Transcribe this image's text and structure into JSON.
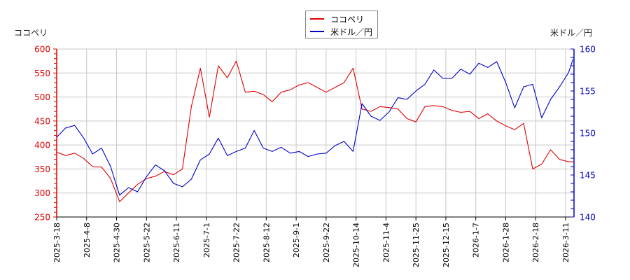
{
  "chart_data": {
    "type": "line",
    "title": "",
    "legend": {
      "position": "top-center",
      "entries": [
        {
          "label": "ココペリ",
          "color": "#e00000"
        },
        {
          "label": "米ドル／円",
          "color": "#0000cc"
        }
      ]
    },
    "grid": true,
    "left_axis": {
      "label": "ココペリ",
      "color": "#e00000",
      "ylim": [
        250,
        600
      ],
      "ticks": [
        250,
        300,
        350,
        400,
        450,
        500,
        550,
        600
      ]
    },
    "right_axis": {
      "label": "米ドル／円",
      "color": "#0000cc",
      "ylim": [
        140,
        160
      ],
      "ticks": [
        140,
        145,
        150,
        155,
        160
      ]
    },
    "x_tick_labels": [
      "2025-3-18",
      "2025-4-8",
      "2025-4-30",
      "2025-5-22",
      "2025-6-11",
      "2025-7-1",
      "2025-7-22",
      "2025-8-12",
      "2025-9-1",
      "2025-9-22",
      "2025-10-14",
      "2025-11-4",
      "2025-11-25",
      "2025-12-15",
      "2026-1-7",
      "2026-1-28",
      "2026-2-18",
      "2026-3-11"
    ],
    "series": [
      {
        "name": "ココペリ",
        "axis": "left",
        "color": "#e00000",
        "x": [
          0,
          0.3,
          0.6,
          0.9,
          1.2,
          1.5,
          1.8,
          2.1,
          2.4,
          2.7,
          3.0,
          3.3,
          3.6,
          3.9,
          4.2,
          4.5,
          4.8,
          5.1,
          5.4,
          5.7,
          6.0,
          6.3,
          6.6,
          6.9,
          7.2,
          7.5,
          7.8,
          8.1,
          8.4,
          8.7,
          9.0,
          9.3,
          9.6,
          9.9,
          10.2,
          10.5,
          10.8,
          11.1,
          11.4,
          11.7,
          12.0,
          12.3,
          12.6,
          12.9,
          13.2,
          13.5,
          13.8,
          14.1,
          14.4,
          14.7,
          15.0,
          15.3,
          15.6,
          15.9,
          16.2,
          16.5,
          16.8,
          17.1,
          17.25
        ],
        "values": [
          385,
          378,
          383,
          372,
          355,
          354,
          330,
          282,
          300,
          318,
          330,
          335,
          345,
          338,
          350,
          480,
          560,
          458,
          565,
          540,
          575,
          510,
          512,
          505,
          490,
          510,
          515,
          525,
          530,
          520,
          510,
          520,
          530,
          560,
          475,
          470,
          480,
          478,
          475,
          455,
          448,
          480,
          482,
          480,
          472,
          468,
          470,
          455,
          465,
          450,
          440,
          432,
          445,
          350,
          360,
          390,
          370,
          365,
          365
        ]
      },
      {
        "name": "米ドル／円",
        "axis": "right",
        "color": "#0000cc",
        "x": [
          0,
          0.3,
          0.6,
          0.9,
          1.2,
          1.5,
          1.8,
          2.1,
          2.4,
          2.7,
          3.0,
          3.3,
          3.6,
          3.9,
          4.2,
          4.5,
          4.8,
          5.1,
          5.4,
          5.7,
          6.0,
          6.3,
          6.6,
          6.9,
          7.2,
          7.5,
          7.8,
          8.1,
          8.4,
          8.7,
          9.0,
          9.3,
          9.6,
          9.9,
          10.2,
          10.5,
          10.8,
          11.1,
          11.4,
          11.7,
          12.0,
          12.3,
          12.6,
          12.9,
          13.2,
          13.5,
          13.8,
          14.1,
          14.4,
          14.7,
          15.0,
          15.3,
          15.6,
          15.9,
          16.2,
          16.5,
          16.8,
          17.1,
          17.25
        ],
        "values": [
          149.5,
          150.6,
          150.9,
          149.4,
          147.5,
          148.2,
          146.0,
          142.6,
          143.5,
          143.0,
          144.8,
          146.2,
          145.5,
          144.0,
          143.6,
          144.5,
          146.8,
          147.5,
          149.4,
          147.3,
          147.8,
          148.2,
          150.3,
          148.2,
          147.8,
          148.3,
          147.6,
          147.8,
          147.2,
          147.5,
          147.6,
          148.5,
          149.0,
          147.8,
          153.5,
          152.0,
          151.5,
          152.5,
          154.2,
          154.0,
          155.0,
          155.8,
          157.5,
          156.5,
          156.5,
          157.6,
          157.0,
          158.3,
          157.8,
          158.5,
          156.0,
          153.0,
          155.5,
          155.8,
          151.8,
          154.0,
          155.5,
          157.2,
          158.8
        ]
      }
    ]
  }
}
